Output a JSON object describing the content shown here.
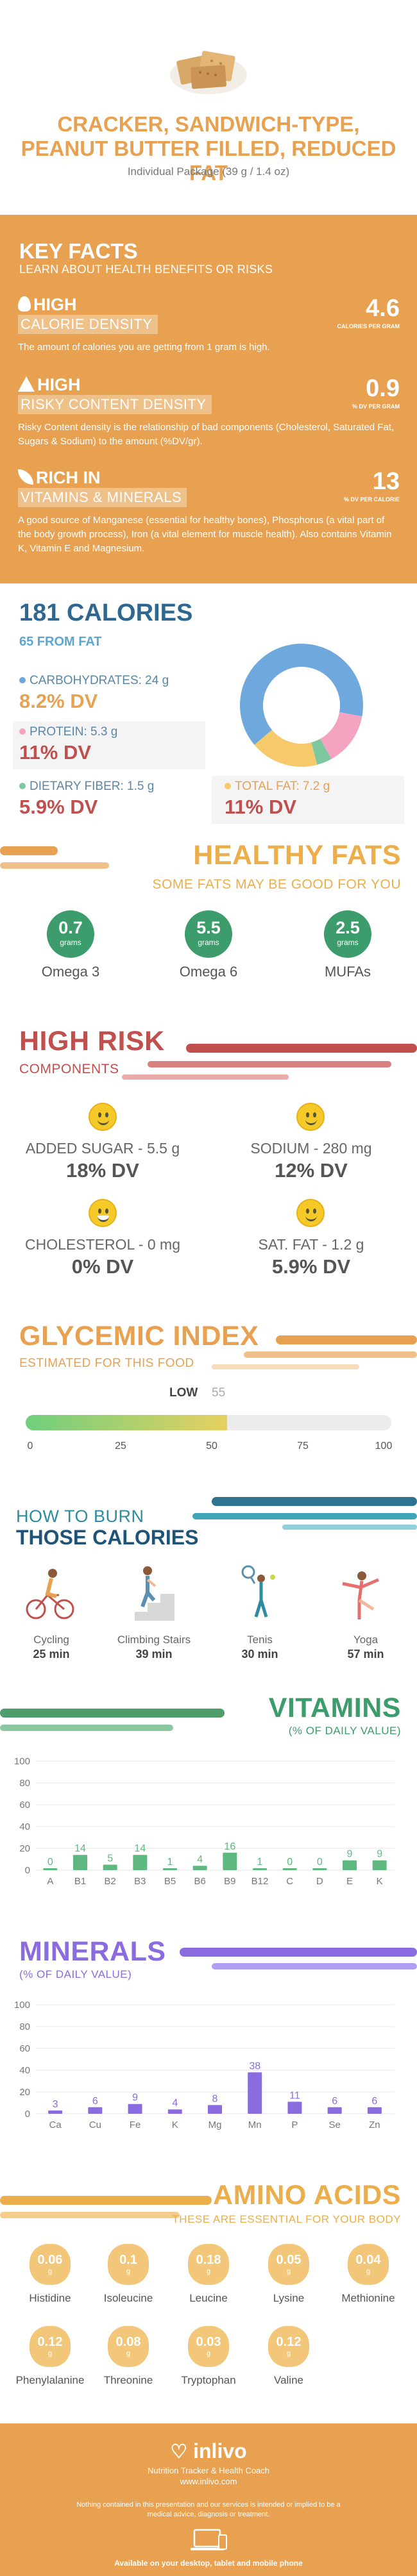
{
  "header": {
    "title": "CRACKER, SANDWICH-TYPE, PEANUT BUTTER FILLED, REDUCED FAT",
    "subtitle": "Individual Package (39 g / 1.4 oz)",
    "image_icon": "cracker-sandwich-image"
  },
  "key_facts": {
    "title": "KEY FACTS",
    "subtitle": "LEARN ABOUT HEALTH BENEFITS OR RISKS",
    "items": [
      {
        "tag": "HIGH",
        "band": "CALORIE DENSITY",
        "value": "4.6",
        "unit": "CALORIES PER GRAM",
        "desc": "The amount of calories you are getting from 1 gram is high.",
        "icon": "flame-icon"
      },
      {
        "tag": "HIGH",
        "band": "RISKY CONTENT DENSITY",
        "value": "0.9",
        "unit": "% DV PER GRAM",
        "desc": "Risky Content density is the relationship of bad components (Cholesterol, Saturated Fat, Sugars & Sodium) to the amount (%DV/gr).",
        "icon": "warning-icon"
      },
      {
        "tag": "RICH  IN",
        "band": "VITAMINS & MINERALS",
        "value": "13",
        "unit": "% DV PER CALORIE",
        "desc": "A good source of Manganese (essential for healthy bones), Phosphorus (a vital part of the body growth process), Iron (a vital element for muscle health). Also contains Vitamin K, Vitamin E and Magnesium.",
        "icon": "leaf-icon"
      }
    ]
  },
  "calories": {
    "title": "181 CALORIES",
    "subtitle": "65 FROM FAT",
    "macros": [
      {
        "label": "CARBOHYDRATES: 24 g",
        "dv": "8.2% DV",
        "color": "#6fa8dc"
      },
      {
        "label": "PROTEIN: 5.3 g",
        "dv": "11% DV",
        "color": "#f4a3c0"
      },
      {
        "label": "DIETARY FIBER: 1.5 g",
        "dv": "5.9% DV",
        "color": "#7ec8a0"
      },
      {
        "label": "TOTAL FAT: 7.2 g",
        "dv": "11% DV",
        "color": "#f6c96a"
      }
    ]
  },
  "chart_data": [
    {
      "type": "pie",
      "title": "",
      "categories": [
        "CARBOHYDRATES",
        "PROTEIN",
        "DIETARY FIBER",
        "TOTAL FAT"
      ],
      "values": [
        64,
        14,
        4,
        18
      ],
      "colors": [
        "#6fa8dc",
        "#f4a3c0",
        "#7ec8a0",
        "#f6c96a"
      ]
    },
    {
      "type": "bar",
      "title": "VITAMINS",
      "ylabel": "(% OF DAILY VALUE)",
      "categories": [
        "A",
        "B1",
        "B2",
        "B3",
        "B5",
        "B6",
        "B9",
        "B12",
        "C",
        "D",
        "E",
        "K"
      ],
      "values": [
        0,
        14,
        5,
        14,
        1,
        4,
        16,
        1,
        0,
        0,
        9,
        9
      ],
      "yticks": [
        0,
        20,
        40,
        60,
        80,
        100
      ],
      "ylim": [
        0,
        100
      ],
      "color": "#5fb87f"
    },
    {
      "type": "bar",
      "title": "MINERALS",
      "ylabel": "(% OF DAILY VALUE)",
      "categories": [
        "Ca",
        "Cu",
        "Fe",
        "K",
        "Mg",
        "Mn",
        "P",
        "Se",
        "Zn"
      ],
      "values": [
        3,
        6,
        9,
        4,
        8,
        38,
        11,
        6,
        6
      ],
      "yticks": [
        0,
        20,
        40,
        60,
        80,
        100
      ],
      "ylim": [
        0,
        100
      ],
      "color": "#8a6be0"
    }
  ],
  "healthy_fats": {
    "title": "HEALTHY FATS",
    "subtitle": "SOME FATS MAY BE GOOD FOR YOU",
    "items": [
      {
        "value": "0.7",
        "unit": "grams",
        "name": "Omega 3"
      },
      {
        "value": "5.5",
        "unit": "grams",
        "name": "Omega 6"
      },
      {
        "value": "2.5",
        "unit": "grams",
        "name": "MUFAs"
      }
    ]
  },
  "high_risk": {
    "title": "HIGH RISK",
    "subtitle": "COMPONENTS",
    "items": [
      {
        "label": "ADDED SUGAR - 5.5 g",
        "dv": "18% DV"
      },
      {
        "label": "SODIUM - 280 mg",
        "dv": "12% DV"
      },
      {
        "label": "CHOLESTEROL - 0 mg",
        "dv": "0% DV"
      },
      {
        "label": "SAT. FAT - 1.2 g",
        "dv": "5.9% DV"
      }
    ]
  },
  "glycemic": {
    "title": "GLYCEMIC INDEX",
    "subtitle": "ESTIMATED FOR THIS FOOD",
    "level": "LOW",
    "value": "55",
    "value_num": 55,
    "ticks": [
      "0",
      "25",
      "50",
      "75",
      "100"
    ]
  },
  "burn": {
    "title_line1": "HOW TO BURN",
    "title_line2": "THOSE CALORIES",
    "items": [
      {
        "name": "Cycling",
        "min": "25 min",
        "icon": "cycling-icon"
      },
      {
        "name": "Climbing Stairs",
        "min": "39 min",
        "icon": "climbing-stairs-icon"
      },
      {
        "name": "Tenis",
        "min": "30 min",
        "icon": "tennis-icon"
      },
      {
        "name": "Yoga",
        "min": "57 min",
        "icon": "yoga-icon"
      }
    ]
  },
  "vitamins": {
    "title": "VITAMINS",
    "subtitle": "(% OF DAILY VALUE)"
  },
  "minerals": {
    "title": "MINERALS",
    "subtitle": "(% OF DAILY VALUE)"
  },
  "amino": {
    "title": "AMINO ACIDS",
    "subtitle": "THESE ARE ESSENTIAL FOR YOUR BODY",
    "items": [
      {
        "value": "0.06",
        "unit": "g",
        "name": "Histidine"
      },
      {
        "value": "0.1",
        "unit": "g",
        "name": "Isoleucine"
      },
      {
        "value": "0.18",
        "unit": "g",
        "name": "Leucine"
      },
      {
        "value": "0.05",
        "unit": "g",
        "name": "Lysine"
      },
      {
        "value": "0.04",
        "unit": "g",
        "name": "Methionine"
      },
      {
        "value": "0.12",
        "unit": "g",
        "name": "Phenylalanine"
      },
      {
        "value": "0.08",
        "unit": "g",
        "name": "Threonine"
      },
      {
        "value": "0.03",
        "unit": "g",
        "name": "Tryptophan"
      },
      {
        "value": "0.12",
        "unit": "g",
        "name": "Valine"
      }
    ]
  },
  "footer": {
    "brand": "inlivo",
    "tagline": "Nutrition Tracker & Health Coach",
    "url": "www.inlivo.com",
    "disclaimer": "Nothing contained in this presentation and our services is intended or implied to be a medical advice, diagnosis or treatment.",
    "available": "Available on your desktop, tablet and mobile phone",
    "logo_icon": "inlivo-heart-icon",
    "devices_icon": "devices-icon"
  }
}
